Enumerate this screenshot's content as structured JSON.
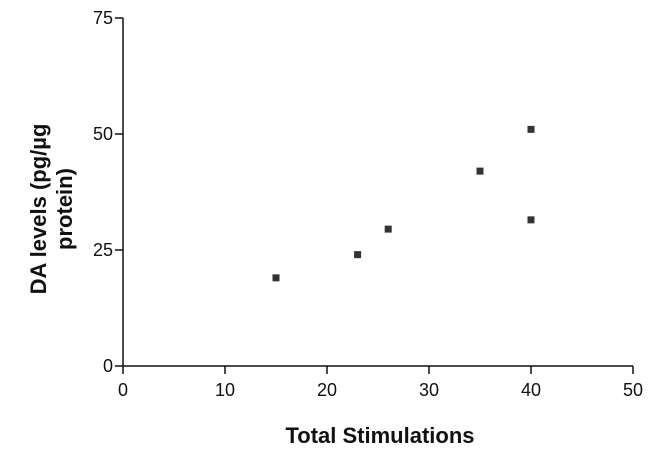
{
  "chart_data": {
    "type": "scatter",
    "title": "",
    "xlabel": "Total Stimulations",
    "ylabel": "DA levels (pg/µg protein)",
    "ylabel_lines": [
      "DA levels (pg/µg",
      "protein)"
    ],
    "xlim": [
      0,
      50
    ],
    "ylim": [
      0,
      75
    ],
    "x_ticks": [
      0,
      10,
      20,
      30,
      40,
      50
    ],
    "y_ticks": [
      0,
      25,
      50,
      75
    ],
    "grid": false,
    "legend": "none",
    "marker": "square",
    "marker_color": "#333333",
    "series": [
      {
        "x": [
          15,
          23,
          26,
          35,
          40,
          40
        ],
        "y": [
          19,
          24,
          29.5,
          42,
          51,
          31.5
        ]
      }
    ]
  }
}
